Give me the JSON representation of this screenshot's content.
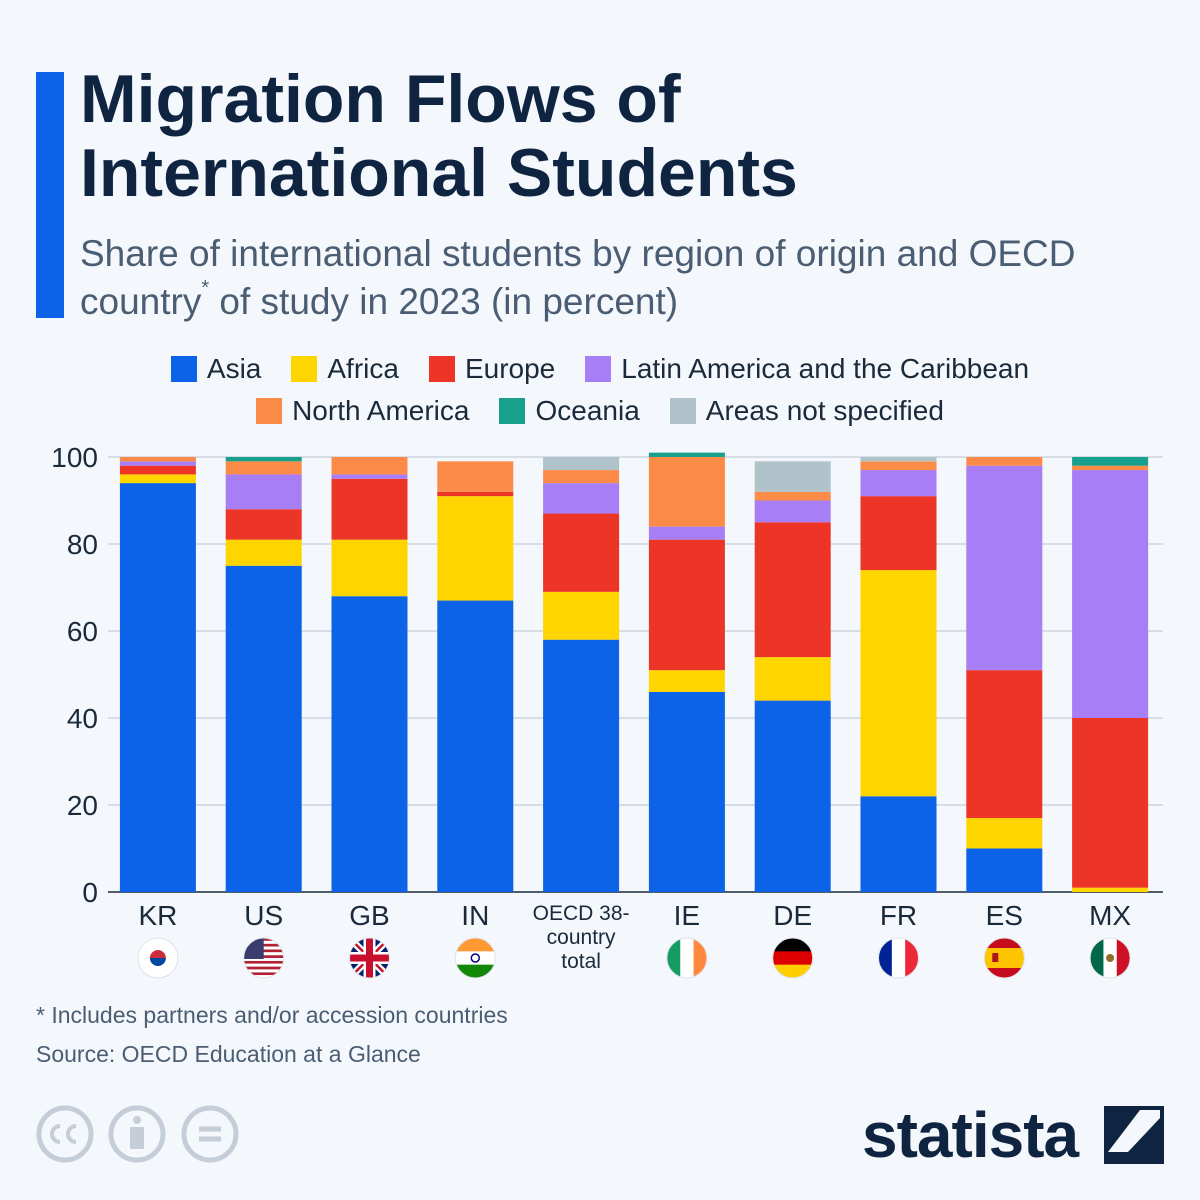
{
  "chart_data": {
    "type": "stacked_bar",
    "title": "Migration Flows of International Students",
    "subtitle": "Share of international students by region of origin and OECD country* of study in 2023 (in percent)",
    "categories": [
      "KR",
      "US",
      "GB",
      "IN",
      "OECD 38-country total",
      "IE",
      "DE",
      "FR",
      "ES",
      "MX"
    ],
    "series": [
      {
        "name": "Asia",
        "color": "#0c63e7",
        "values": [
          94,
          75,
          68,
          67,
          58,
          46,
          44,
          22,
          10,
          0
        ]
      },
      {
        "name": "Africa",
        "color": "#ffd500",
        "values": [
          2,
          6,
          13,
          24,
          11,
          5,
          10,
          52,
          7,
          1
        ]
      },
      {
        "name": "Europe",
        "color": "#ec3427",
        "values": [
          2,
          7,
          14,
          1,
          18,
          30,
          31,
          17,
          34,
          39
        ]
      },
      {
        "name": "Latin America and the Caribbean",
        "color": "#a77ef5",
        "values": [
          1,
          8,
          1,
          0,
          7,
          3,
          5,
          6,
          47,
          57
        ]
      },
      {
        "name": "North America",
        "color": "#fd8b48",
        "values": [
          1,
          3,
          4,
          7,
          3,
          16,
          2,
          2,
          2,
          1
        ]
      },
      {
        "name": "Oceania",
        "color": "#16a08d",
        "values": [
          0,
          1,
          0,
          0,
          0,
          1,
          0,
          0,
          0,
          2
        ]
      },
      {
        "name": "Areas not specified",
        "color": "#b0c3cb",
        "values": [
          0,
          0,
          0,
          0,
          3,
          0,
          7,
          1,
          0,
          0
        ]
      }
    ],
    "ylim": [
      0,
      100
    ],
    "yticks": [
      0,
      20,
      40,
      60,
      80,
      100
    ],
    "grid": true,
    "footnote": "* Includes partners and/or accession countries",
    "source": "Source: OECD Education at a Glance",
    "brand": "statista"
  }
}
